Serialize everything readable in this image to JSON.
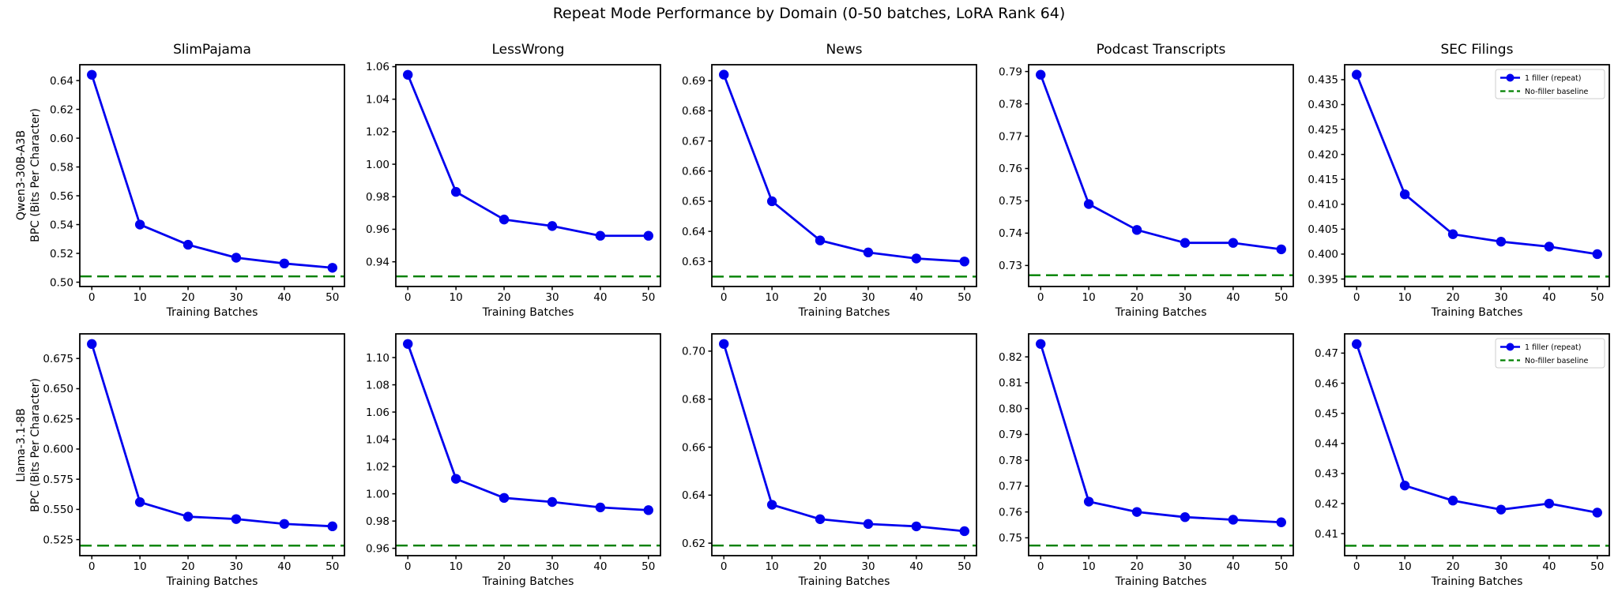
{
  "suptitle": "Repeat Mode Performance by Domain (0-50 batches, LoRA Rank 64)",
  "xlabel": "Training Batches",
  "columns": [
    "SlimPajama",
    "LessWrong",
    "News",
    "Podcast Transcripts",
    "SEC Filings"
  ],
  "rows": [
    {
      "model": "Qwen3-30B-A3B",
      "ylabel": "BPC (Bits Per Character)"
    },
    {
      "model": "Llama-3.1-8B",
      "ylabel": "BPC (Bits Per Character)"
    }
  ],
  "colors": {
    "series": "#0000ee",
    "baseline": "#008000",
    "spine": "#000000",
    "text": "#000000",
    "background": "#ffffff",
    "legend_border": "#cccccc"
  },
  "legend": {
    "position": "upper-right",
    "shown_on_column": "SEC Filings",
    "entries": [
      {
        "label": "1 filler (repeat)",
        "color": "#0000ee",
        "line": "solid",
        "marker": "circle"
      },
      {
        "label": "No-filler baseline",
        "color": "#008000",
        "line": "dashed",
        "marker": "none"
      }
    ]
  },
  "chart_data": [
    {
      "type": "line",
      "row": "Qwen3-30B-A3B",
      "domain": "SlimPajama",
      "title": "SlimPajama",
      "show_title": true,
      "show_legend": false,
      "x": [
        0,
        10,
        20,
        30,
        40,
        50
      ],
      "xticks": [
        0,
        10,
        20,
        30,
        40,
        50
      ],
      "xlim": [
        -2.5,
        52.5
      ],
      "series": [
        {
          "name": "1 filler (repeat)",
          "values": [
            0.644,
            0.54,
            0.526,
            0.517,
            0.513,
            0.51
          ]
        }
      ],
      "baseline": {
        "name": "No-filler baseline",
        "value": 0.504
      },
      "yticks": [
        0.5,
        0.52,
        0.54,
        0.56,
        0.58,
        0.6,
        0.62,
        0.64
      ],
      "ytick_decimals": 2,
      "ylim": [
        0.497,
        0.651
      ]
    },
    {
      "type": "line",
      "row": "Qwen3-30B-A3B",
      "domain": "LessWrong",
      "title": "LessWrong",
      "show_title": true,
      "show_legend": false,
      "x": [
        0,
        10,
        20,
        30,
        40,
        50
      ],
      "xticks": [
        0,
        10,
        20,
        30,
        40,
        50
      ],
      "xlim": [
        -2.5,
        52.5
      ],
      "series": [
        {
          "name": "1 filler (repeat)",
          "values": [
            1.055,
            0.983,
            0.966,
            0.962,
            0.956,
            0.956
          ]
        }
      ],
      "baseline": {
        "name": "No-filler baseline",
        "value": 0.931
      },
      "yticks": [
        0.94,
        0.96,
        0.98,
        1.0,
        1.02,
        1.04,
        1.06
      ],
      "ytick_decimals": 2,
      "ylim": [
        0.9248,
        1.0612
      ]
    },
    {
      "type": "line",
      "row": "Qwen3-30B-A3B",
      "domain": "News",
      "title": "News",
      "show_title": true,
      "show_legend": false,
      "x": [
        0,
        10,
        20,
        30,
        40,
        50
      ],
      "xticks": [
        0,
        10,
        20,
        30,
        40,
        50
      ],
      "xlim": [
        -2.5,
        52.5
      ],
      "series": [
        {
          "name": "1 filler (repeat)",
          "values": [
            0.692,
            0.65,
            0.637,
            0.633,
            0.631,
            0.63
          ]
        }
      ],
      "baseline": {
        "name": "No-filler baseline",
        "value": 0.625
      },
      "yticks": [
        0.63,
        0.64,
        0.65,
        0.66,
        0.67,
        0.68,
        0.69
      ],
      "ytick_decimals": 2,
      "ylim": [
        0.6217,
        0.6953
      ]
    },
    {
      "type": "line",
      "row": "Qwen3-30B-A3B",
      "domain": "Podcast Transcripts",
      "title": "Podcast Transcripts",
      "show_title": true,
      "show_legend": false,
      "x": [
        0,
        10,
        20,
        30,
        40,
        50
      ],
      "xticks": [
        0,
        10,
        20,
        30,
        40,
        50
      ],
      "xlim": [
        -2.5,
        52.5
      ],
      "series": [
        {
          "name": "1 filler (repeat)",
          "values": [
            0.789,
            0.749,
            0.741,
            0.737,
            0.737,
            0.735
          ]
        }
      ],
      "baseline": {
        "name": "No-filler baseline",
        "value": 0.727
      },
      "yticks": [
        0.73,
        0.74,
        0.75,
        0.76,
        0.77,
        0.78,
        0.79
      ],
      "ytick_decimals": 2,
      "ylim": [
        0.7235,
        0.7921
      ]
    },
    {
      "type": "line",
      "row": "Qwen3-30B-A3B",
      "domain": "SEC Filings",
      "title": "SEC Filings",
      "show_title": true,
      "show_legend": true,
      "x": [
        0,
        10,
        20,
        30,
        40,
        50
      ],
      "xticks": [
        0,
        10,
        20,
        30,
        40,
        50
      ],
      "xlim": [
        -2.5,
        52.5
      ],
      "series": [
        {
          "name": "1 filler (repeat)",
          "values": [
            0.436,
            0.412,
            0.404,
            0.4025,
            0.4015,
            0.4
          ]
        }
      ],
      "baseline": {
        "name": "No-filler baseline",
        "value": 0.3955
      },
      "yticks": [
        0.395,
        0.4,
        0.405,
        0.41,
        0.415,
        0.42,
        0.425,
        0.43,
        0.435
      ],
      "ytick_decimals": 3,
      "ylim": [
        0.3935,
        0.438
      ]
    },
    {
      "type": "line",
      "row": "Llama-3.1-8B",
      "domain": "SlimPajama",
      "title": "SlimPajama",
      "show_title": false,
      "show_legend": false,
      "x": [
        0,
        10,
        20,
        30,
        40,
        50
      ],
      "xticks": [
        0,
        10,
        20,
        30,
        40,
        50
      ],
      "xlim": [
        -2.5,
        52.5
      ],
      "series": [
        {
          "name": "1 filler (repeat)",
          "values": [
            0.687,
            0.556,
            0.544,
            0.542,
            0.538,
            0.536
          ]
        }
      ],
      "baseline": {
        "name": "No-filler baseline",
        "value": 0.52
      },
      "yticks": [
        0.525,
        0.55,
        0.575,
        0.6,
        0.625,
        0.65,
        0.675
      ],
      "ytick_decimals": 3,
      "ylim": [
        0.5117,
        0.6954
      ]
    },
    {
      "type": "line",
      "row": "Llama-3.1-8B",
      "domain": "LessWrong",
      "title": "LessWrong",
      "show_title": false,
      "show_legend": false,
      "x": [
        0,
        10,
        20,
        30,
        40,
        50
      ],
      "xticks": [
        0,
        10,
        20,
        30,
        40,
        50
      ],
      "xlim": [
        -2.5,
        52.5
      ],
      "series": [
        {
          "name": "1 filler (repeat)",
          "values": [
            1.11,
            1.011,
            0.997,
            0.994,
            0.99,
            0.988
          ]
        }
      ],
      "baseline": {
        "name": "No-filler baseline",
        "value": 0.962
      },
      "yticks": [
        0.96,
        0.98,
        1.0,
        1.02,
        1.04,
        1.06,
        1.08,
        1.1
      ],
      "ytick_decimals": 2,
      "ylim": [
        0.9546,
        1.1174
      ]
    },
    {
      "type": "line",
      "row": "Llama-3.1-8B",
      "domain": "News",
      "title": "News",
      "show_title": false,
      "show_legend": false,
      "x": [
        0,
        10,
        20,
        30,
        40,
        50
      ],
      "xticks": [
        0,
        10,
        20,
        30,
        40,
        50
      ],
      "xlim": [
        -2.5,
        52.5
      ],
      "series": [
        {
          "name": "1 filler (repeat)",
          "values": [
            0.703,
            0.636,
            0.63,
            0.628,
            0.627,
            0.625
          ]
        }
      ],
      "baseline": {
        "name": "No-filler baseline",
        "value": 0.619
      },
      "yticks": [
        0.62,
        0.64,
        0.66,
        0.68,
        0.7
      ],
      "ytick_decimals": 2,
      "ylim": [
        0.6148,
        0.7072
      ]
    },
    {
      "type": "line",
      "row": "Llama-3.1-8B",
      "domain": "Podcast Transcripts",
      "title": "Podcast Transcripts",
      "show_title": false,
      "show_legend": false,
      "x": [
        0,
        10,
        20,
        30,
        40,
        50
      ],
      "xticks": [
        0,
        10,
        20,
        30,
        40,
        50
      ],
      "xlim": [
        -2.5,
        52.5
      ],
      "series": [
        {
          "name": "1 filler (repeat)",
          "values": [
            0.825,
            0.764,
            0.76,
            0.758,
            0.757,
            0.756
          ]
        }
      ],
      "baseline": {
        "name": "No-filler baseline",
        "value": 0.747
      },
      "yticks": [
        0.75,
        0.76,
        0.77,
        0.78,
        0.79,
        0.8,
        0.81,
        0.82
      ],
      "ytick_decimals": 2,
      "ylim": [
        0.7431,
        0.8289
      ]
    },
    {
      "type": "line",
      "row": "Llama-3.1-8B",
      "domain": "SEC Filings",
      "title": "SEC Filings",
      "show_title": false,
      "show_legend": true,
      "x": [
        0,
        10,
        20,
        30,
        40,
        50
      ],
      "xticks": [
        0,
        10,
        20,
        30,
        40,
        50
      ],
      "xlim": [
        -2.5,
        52.5
      ],
      "series": [
        {
          "name": "1 filler (repeat)",
          "values": [
            0.473,
            0.426,
            0.421,
            0.418,
            0.42,
            0.417
          ]
        }
      ],
      "baseline": {
        "name": "No-filler baseline",
        "value": 0.406
      },
      "yticks": [
        0.41,
        0.42,
        0.43,
        0.44,
        0.45,
        0.46,
        0.47
      ],
      "ytick_decimals": 2,
      "ylim": [
        0.4027,
        0.4764
      ]
    }
  ]
}
